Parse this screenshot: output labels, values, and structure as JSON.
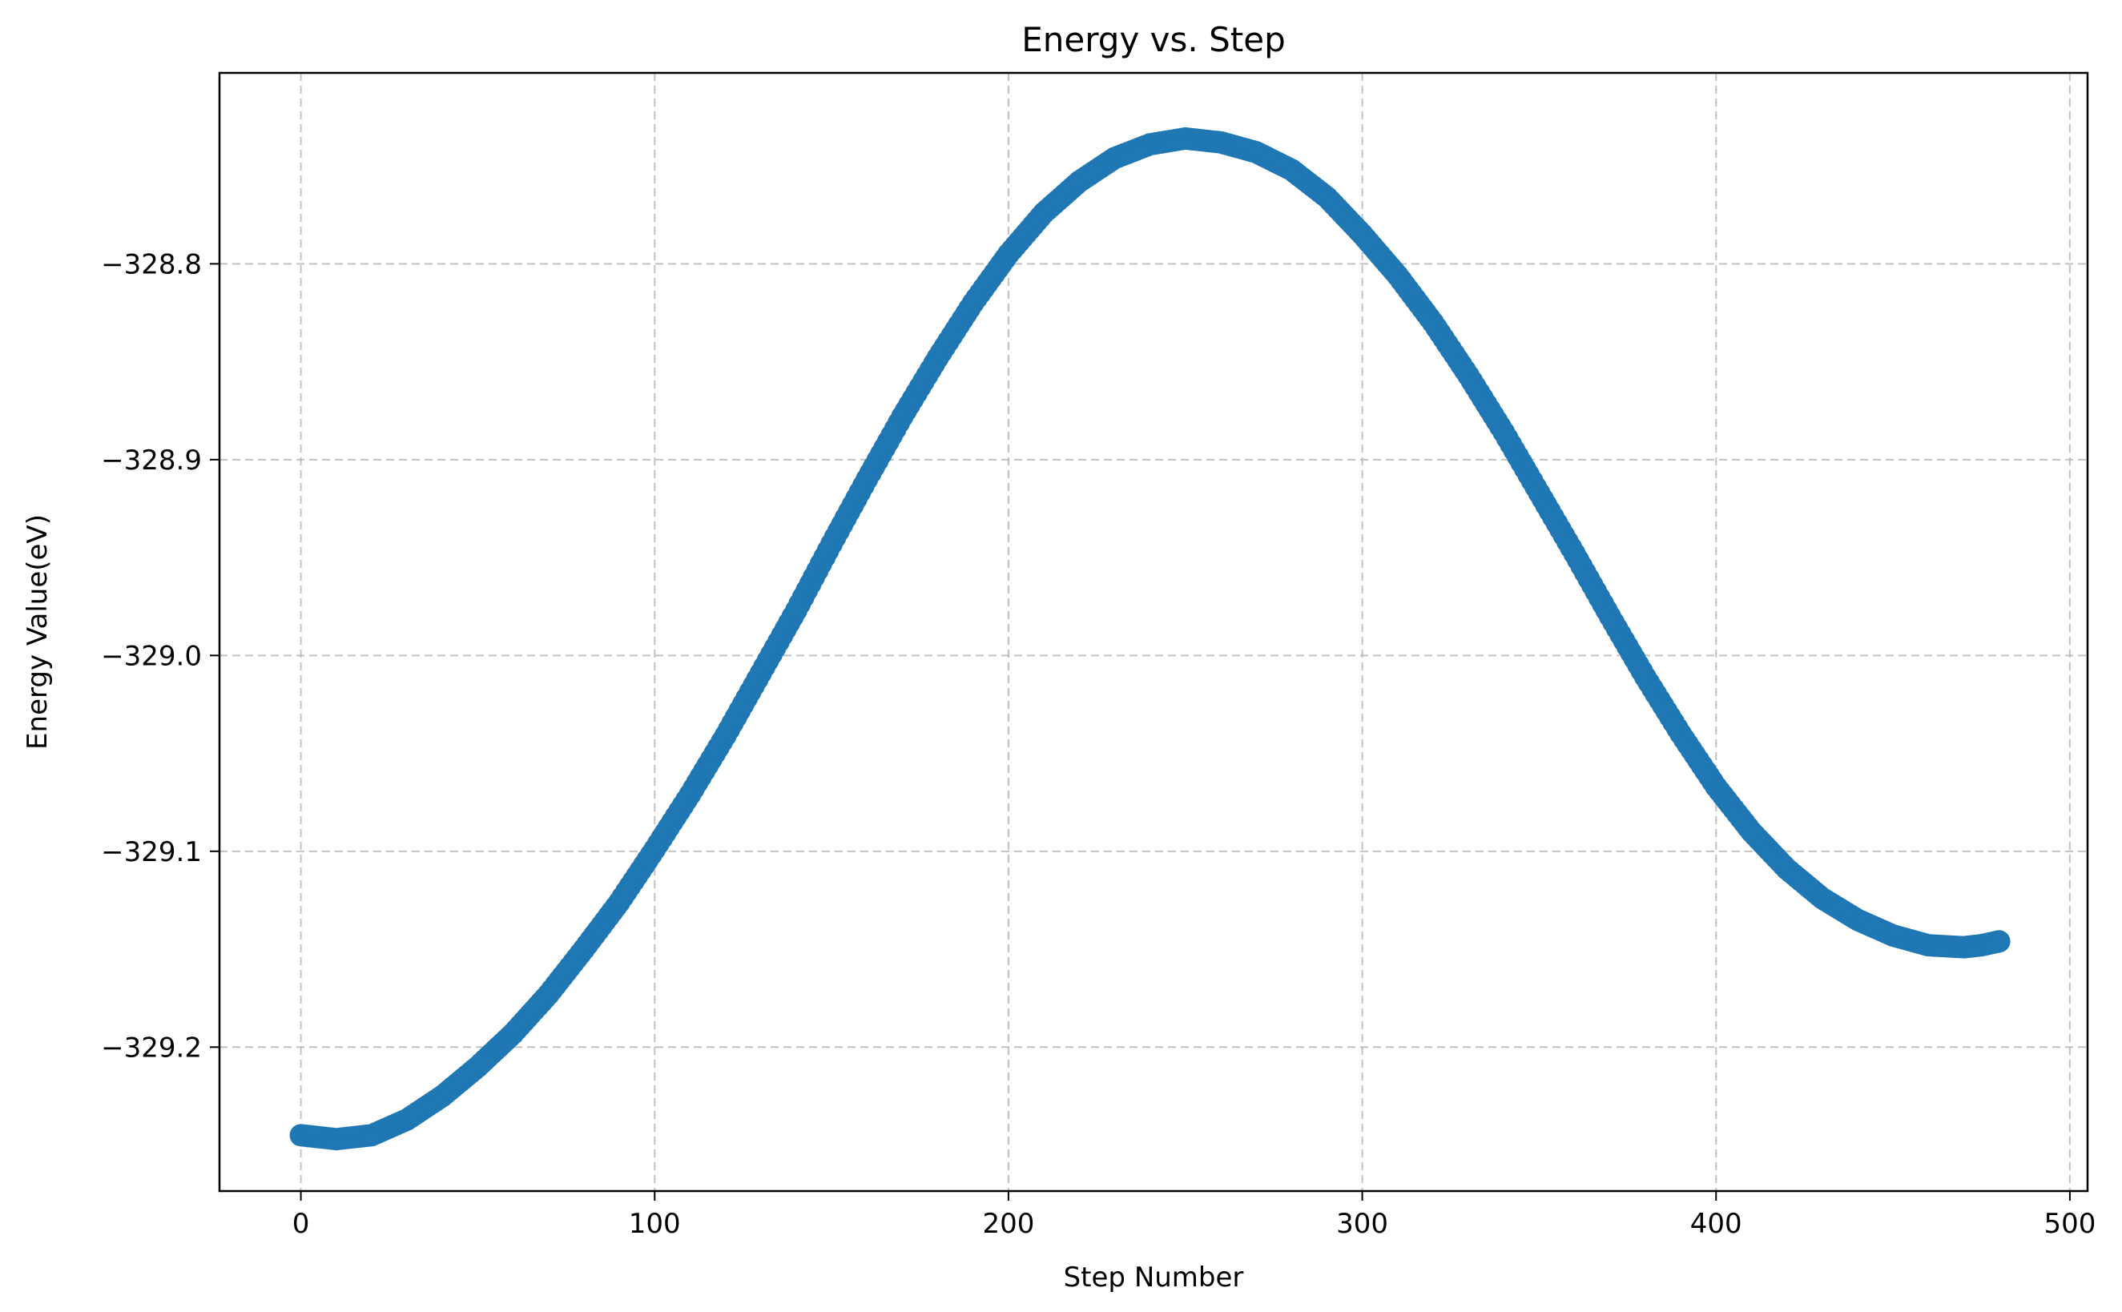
{
  "chart_data": {
    "type": "scatter",
    "title": "Energy vs. Step",
    "xlabel": "Step Number",
    "ylabel": "Energy Value(eV)",
    "xlim": [
      -23,
      505
    ],
    "ylim": [
      -329.2735,
      -328.7025
    ],
    "x_ticks": [
      {
        "value": 0,
        "label": "0"
      },
      {
        "value": 100,
        "label": "100"
      },
      {
        "value": 200,
        "label": "200"
      },
      {
        "value": 300,
        "label": "300"
      },
      {
        "value": 400,
        "label": "400"
      },
      {
        "value": 500,
        "label": "500"
      }
    ],
    "y_ticks": [
      {
        "value": -328.8,
        "label": "−328.8"
      },
      {
        "value": -328.9,
        "label": "−328.9"
      },
      {
        "value": -329.0,
        "label": "−329.0"
      },
      {
        "value": -329.1,
        "label": "−329.1"
      },
      {
        "value": -329.2,
        "label": "−329.2"
      }
    ],
    "grid": true,
    "series": [
      {
        "color": "#1f77b4",
        "x": [
          0,
          10,
          20,
          30,
          40,
          50,
          60,
          70,
          80,
          90,
          100,
          110,
          120,
          130,
          140,
          150,
          160,
          170,
          180,
          190,
          200,
          210,
          220,
          230,
          240,
          250,
          260,
          270,
          280,
          290,
          300,
          310,
          320,
          330,
          340,
          350,
          360,
          370,
          380,
          390,
          400,
          410,
          420,
          430,
          440,
          450,
          460,
          470,
          475,
          480
        ],
        "y": [
          -329.245,
          -329.247,
          -329.245,
          -329.237,
          -329.225,
          -329.21,
          -329.193,
          -329.173,
          -329.15,
          -329.126,
          -329.099,
          -329.071,
          -329.041,
          -329.009,
          -328.977,
          -328.943,
          -328.91,
          -328.878,
          -328.848,
          -328.82,
          -328.795,
          -328.774,
          -328.758,
          -328.746,
          -328.739,
          -328.736,
          -328.738,
          -328.743,
          -328.752,
          -328.766,
          -328.785,
          -328.806,
          -328.83,
          -328.857,
          -328.886,
          -328.917,
          -328.948,
          -328.98,
          -329.011,
          -329.04,
          -329.067,
          -329.09,
          -329.109,
          -329.124,
          -329.135,
          -329.143,
          -329.148,
          -329.149,
          -329.148,
          -329.146
        ]
      }
    ]
  }
}
